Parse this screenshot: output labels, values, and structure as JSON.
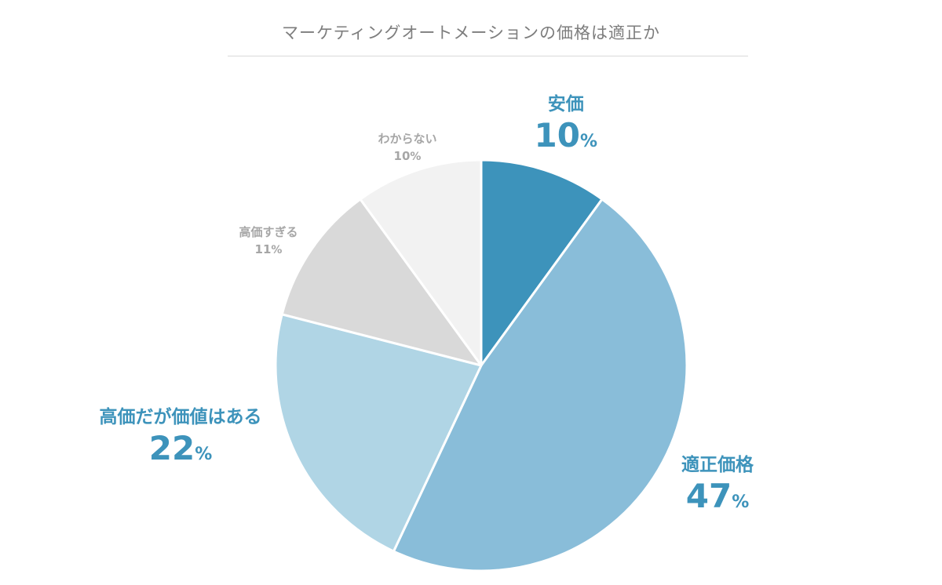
{
  "chart_data": {
    "type": "pie",
    "title": "マーケティングオートメーションの価格は適正か",
    "unit": "%",
    "slices": [
      {
        "label": "安価",
        "value": 10,
        "color": "#3d93bb",
        "label_color": "#3d93bb",
        "emphasis": true
      },
      {
        "label": "適正価格",
        "value": 47,
        "color": "#89bdd9",
        "label_color": "#3d93bb",
        "emphasis": true
      },
      {
        "label": "高価だが価値はある",
        "value": 22,
        "color": "#b0d5e5",
        "label_color": "#3d93bb",
        "emphasis": true
      },
      {
        "label": "高価すぎる",
        "value": 11,
        "color": "#d9d9d9",
        "label_color": "#a6a6a6",
        "emphasis": false
      },
      {
        "label": "わからない",
        "value": 10,
        "color": "#f2f2f2",
        "label_color": "#a6a6a6",
        "emphasis": false
      }
    ]
  }
}
